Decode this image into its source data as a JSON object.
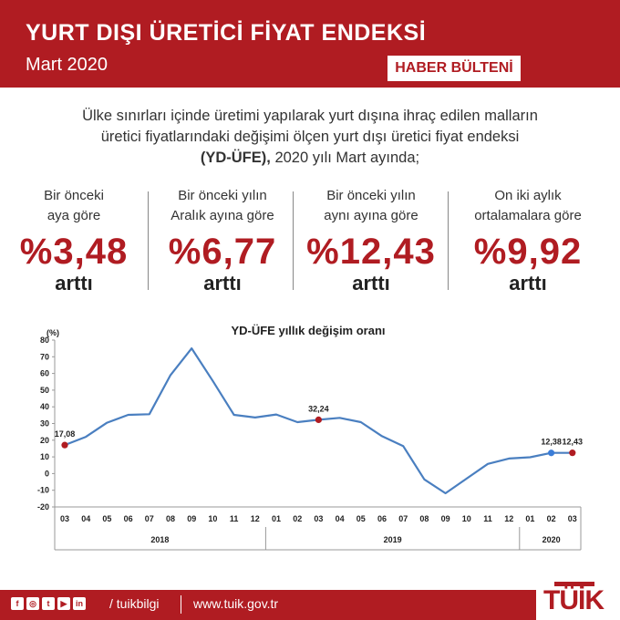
{
  "header": {
    "title": "YURT DIŞI ÜRETİCİ FİYAT ENDEKSİ",
    "subtitle": "Mart 2020",
    "badge": "HABER BÜLTENİ"
  },
  "intro": {
    "line1": "Ülke sınırları içinde üretimi yapılarak yurt dışına ihraç edilen malların",
    "line2": "üretici fiyatlarındaki değişimi ölçen yurt dışı üretici fiyat endeksi",
    "line3_bold": "(YD-ÜFE),",
    "line3_rest": " 2020 yılı Mart ayında;"
  },
  "stats": [
    {
      "caption1": "Bir önceki",
      "caption2": "aya göre",
      "value": "%3,48",
      "word": "arttı"
    },
    {
      "caption1": "Bir önceki yılın",
      "caption2": "Aralık ayına göre",
      "value": "%6,77",
      "word": "arttı"
    },
    {
      "caption1": "Bir önceki yılın",
      "caption2": "aynı ayına göre",
      "value": "%12,43",
      "word": "arttı"
    },
    {
      "caption1": "On iki aylık",
      "caption2": "ortalamalara göre",
      "value": "%9,92",
      "word": "arttı"
    }
  ],
  "chart_data": {
    "type": "line",
    "title": "YD-ÜFE yıllık değişim oranı",
    "ylabel": "(%)",
    "ylim": [
      -20,
      80
    ],
    "yticks": [
      -20,
      -10,
      0,
      10,
      20,
      30,
      40,
      50,
      60,
      70,
      80
    ],
    "categories": [
      "03",
      "04",
      "05",
      "06",
      "07",
      "08",
      "09",
      "10",
      "11",
      "12",
      "01",
      "02",
      "03",
      "04",
      "05",
      "06",
      "07",
      "08",
      "09",
      "10",
      "11",
      "12",
      "01",
      "02",
      "03"
    ],
    "years": [
      {
        "label": "2018",
        "start": 0,
        "end": 9
      },
      {
        "label": "2019",
        "start": 10,
        "end": 21
      },
      {
        "label": "2020",
        "start": 22,
        "end": 24
      }
    ],
    "series": [
      {
        "values": [
          17.08,
          22.0,
          30.5,
          35.2,
          35.6,
          59.0,
          75.0,
          55.5,
          35.2,
          33.6,
          35.4,
          30.8,
          32.24,
          33.4,
          30.8,
          22.4,
          16.5,
          -3.5,
          -11.8,
          -3.0,
          5.8,
          9.0,
          9.8,
          12.38,
          12.43
        ]
      }
    ],
    "annotations": [
      {
        "index": 0,
        "label": "17,08",
        "color": "#b01c22"
      },
      {
        "index": 12,
        "label": "32,24",
        "color": "#b01c22"
      },
      {
        "index": 23,
        "label": "12,38",
        "color": "#3b7dd8"
      },
      {
        "index": 24,
        "label": "12,43",
        "color": "#b01c22"
      }
    ],
    "line_color": "#4a7fc0",
    "grid": false
  },
  "footer": {
    "social_icons": [
      "facebook-icon",
      "instagram-icon",
      "twitter-icon",
      "youtube-icon",
      "linkedin-icon"
    ],
    "handle": "/ tuikbilgi",
    "url": "www.tuik.gov.tr"
  },
  "logo": {
    "text": "TÜİK"
  }
}
